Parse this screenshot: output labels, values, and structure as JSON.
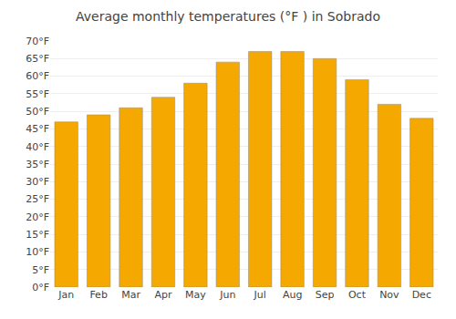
{
  "chart_data": {
    "type": "bar",
    "title": "Average monthly temperatures (°F ) in Sobrado",
    "categories": [
      "Jan",
      "Feb",
      "Mar",
      "Apr",
      "May",
      "Jun",
      "Jul",
      "Aug",
      "Sep",
      "Oct",
      "Nov",
      "Dec"
    ],
    "values": [
      47,
      49,
      51,
      54,
      58,
      64,
      67,
      67,
      65,
      59,
      52,
      48
    ],
    "color": "#F5A800",
    "ylim": [
      0,
      70
    ],
    "yticks": [
      {
        "value": 0,
        "label": "0°F"
      },
      {
        "value": 5,
        "label": "5°F"
      },
      {
        "value": 10,
        "label": "10°F"
      },
      {
        "value": 15,
        "label": "15°F"
      },
      {
        "value": 20,
        "label": "20°F"
      },
      {
        "value": 25,
        "label": "25°F"
      },
      {
        "value": 30,
        "label": "30°F"
      },
      {
        "value": 35,
        "label": "35°F"
      },
      {
        "value": 40,
        "label": "40°F"
      },
      {
        "value": 45,
        "label": "45°F"
      },
      {
        "value": 50,
        "label": "50°F"
      },
      {
        "value": 55,
        "label": "55°F"
      },
      {
        "value": 60,
        "label": "60°F"
      },
      {
        "value": 65,
        "label": "65°F"
      },
      {
        "value": 70,
        "label": "70°F"
      }
    ],
    "grid": true
  }
}
